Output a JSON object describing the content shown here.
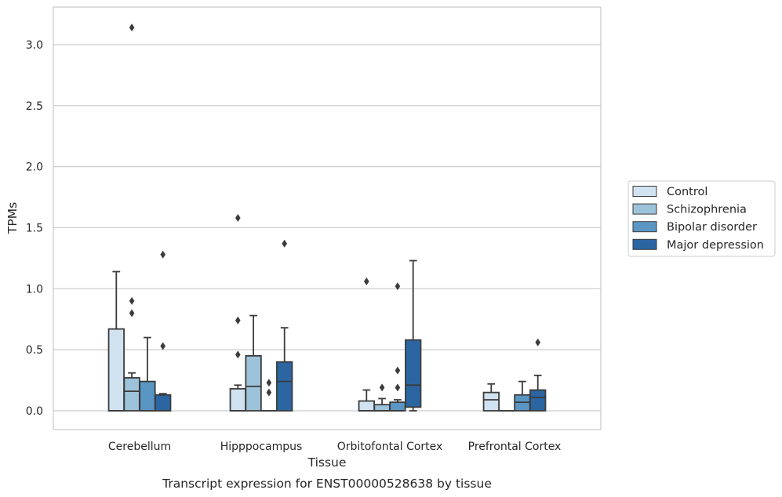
{
  "chart_data": {
    "type": "box",
    "caption": "Transcript expression for ENST00000528638 by tissue",
    "xlabel": "Tissue",
    "ylabel": "TPMs",
    "ylim": [
      -0.15,
      3.3
    ],
    "yticks": [
      0.0,
      0.5,
      1.0,
      1.5,
      2.0,
      2.5,
      3.0
    ],
    "ytick_labels": [
      "0.0",
      "0.5",
      "1.0",
      "1.5",
      "2.0",
      "2.5",
      "3.0"
    ],
    "grid": "horizontal",
    "legend_position": "right",
    "categories": [
      "Cerebellum",
      "Hipppocampus",
      "Orbitofontal Cortex",
      "Prefrontal Cortex"
    ],
    "series": [
      {
        "name": "Control",
        "color": "#d1e2f0",
        "boxes": [
          {
            "q1": 0.0,
            "median": 0.0,
            "q3": 0.67,
            "whisker_low": 0.0,
            "whisker_high": 1.14,
            "outliers": []
          },
          {
            "q1": 0.0,
            "median": 0.0,
            "q3": 0.18,
            "whisker_low": 0.0,
            "whisker_high": 0.21,
            "outliers": [
              0.46,
              0.74,
              1.58
            ]
          },
          {
            "q1": 0.0,
            "median": 0.0,
            "q3": 0.08,
            "whisker_low": 0.0,
            "whisker_high": 0.17,
            "outliers": [
              1.06
            ]
          },
          {
            "q1": 0.0,
            "median": 0.09,
            "q3": 0.15,
            "whisker_low": 0.0,
            "whisker_high": 0.22,
            "outliers": []
          }
        ]
      },
      {
        "name": "Schizophrenia",
        "color": "#9dc3da",
        "boxes": [
          {
            "q1": 0.0,
            "median": 0.16,
            "q3": 0.27,
            "whisker_low": 0.0,
            "whisker_high": 0.31,
            "outliers": [
              0.8,
              0.9,
              3.14
            ]
          },
          {
            "q1": 0.0,
            "median": 0.2,
            "q3": 0.45,
            "whisker_low": 0.0,
            "whisker_high": 0.78,
            "outliers": []
          },
          {
            "q1": 0.0,
            "median": 0.0,
            "q3": 0.05,
            "whisker_low": 0.0,
            "whisker_high": 0.1,
            "outliers": [
              0.19
            ]
          },
          {
            "q1": 0.0,
            "median": 0.0,
            "q3": 0.0,
            "whisker_low": 0.0,
            "whisker_high": 0.0,
            "outliers": []
          }
        ]
      },
      {
        "name": "Bipolar disorder",
        "color": "#5a96c4",
        "boxes": [
          {
            "q1": 0.0,
            "median": 0.0,
            "q3": 0.24,
            "whisker_low": 0.0,
            "whisker_high": 0.6,
            "outliers": []
          },
          {
            "q1": 0.0,
            "median": 0.0,
            "q3": 0.0,
            "whisker_low": 0.0,
            "whisker_high": 0.0,
            "outliers": [
              0.15,
              0.23
            ]
          },
          {
            "q1": 0.0,
            "median": 0.0,
            "q3": 0.07,
            "whisker_low": 0.0,
            "whisker_high": 0.09,
            "outliers": [
              0.19,
              0.33,
              1.02
            ]
          },
          {
            "q1": 0.0,
            "median": 0.07,
            "q3": 0.13,
            "whisker_low": 0.0,
            "whisker_high": 0.24,
            "outliers": []
          }
        ]
      },
      {
        "name": "Major depression",
        "color": "#2b66a3",
        "boxes": [
          {
            "q1": 0.0,
            "median": 0.0,
            "q3": 0.13,
            "whisker_low": 0.0,
            "whisker_high": 0.14,
            "outliers": [
              0.53,
              1.28
            ]
          },
          {
            "q1": 0.0,
            "median": 0.24,
            "q3": 0.4,
            "whisker_low": 0.0,
            "whisker_high": 0.68,
            "outliers": [
              1.37
            ]
          },
          {
            "q1": 0.03,
            "median": 0.21,
            "q3": 0.58,
            "whisker_low": 0.0,
            "whisker_high": 1.23,
            "outliers": []
          },
          {
            "q1": 0.0,
            "median": 0.11,
            "q3": 0.17,
            "whisker_low": 0.0,
            "whisker_high": 0.29,
            "outliers": [
              0.56
            ]
          }
        ]
      }
    ]
  }
}
